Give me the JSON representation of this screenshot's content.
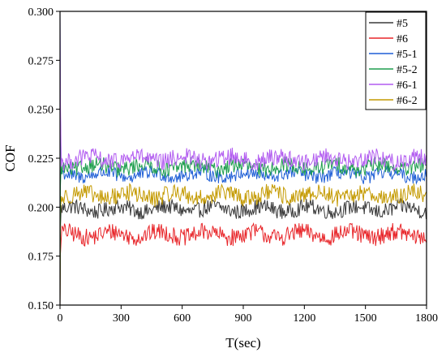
{
  "chart_data": {
    "type": "line",
    "title": "",
    "xlabel": "T(sec)",
    "ylabel": "COF",
    "xlim": [
      0,
      1800
    ],
    "ylim": [
      0.15,
      0.3
    ],
    "xticks": [
      "0",
      "300",
      "600",
      "900",
      "1200",
      "1500",
      "1800"
    ],
    "yticks": [
      "0.150",
      "0.175",
      "0.200",
      "0.225",
      "0.250",
      "0.275",
      "0.300"
    ],
    "grid": false,
    "legend_position": "top-right",
    "series": [
      {
        "name": "#5",
        "color": "#3a3a3a",
        "mean": 0.199,
        "amplitude": 0.004
      },
      {
        "name": "#6",
        "color": "#e8262a",
        "mean": 0.186,
        "amplitude": 0.0045
      },
      {
        "name": "#5-1",
        "color": "#1f5fd6",
        "mean": 0.2165,
        "amplitude": 0.0035
      },
      {
        "name": "#5-2",
        "color": "#1e9e4e",
        "mean": 0.2205,
        "amplitude": 0.004
      },
      {
        "name": "#6-1",
        "color": "#b25cf0",
        "mean": 0.2245,
        "amplitude": 0.0045
      },
      {
        "name": "#6-2",
        "color": "#c49a00",
        "mean": 0.206,
        "amplitude": 0.0045
      }
    ]
  }
}
